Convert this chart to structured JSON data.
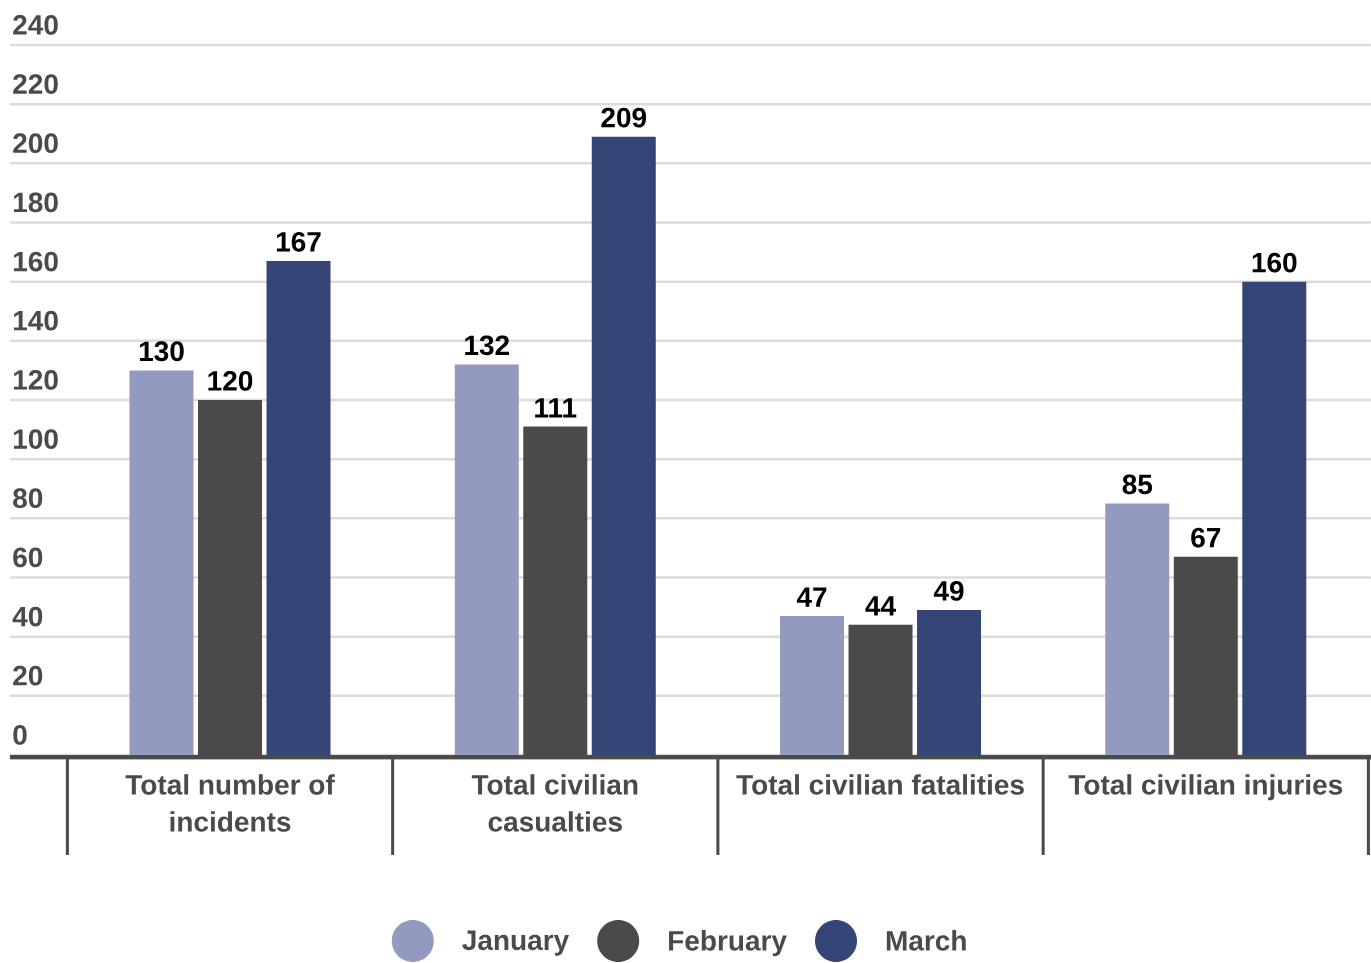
{
  "chart_data": {
    "type": "bar",
    "categories": [
      "Total number of incidents",
      "Total civilian casualties",
      "Total civilian fatalities",
      "Total civilian injuries"
    ],
    "series": [
      {
        "name": "January",
        "color": "#939abf",
        "values": [
          130,
          132,
          47,
          85
        ]
      },
      {
        "name": "February",
        "color": "#4a4a4a",
        "values": [
          120,
          111,
          44,
          67
        ]
      },
      {
        "name": "March",
        "color": "#354577",
        "values": [
          167,
          209,
          49,
          160
        ]
      }
    ],
    "ylim": [
      0,
      240
    ],
    "yticks": [
      0,
      20,
      40,
      60,
      80,
      100,
      120,
      140,
      160,
      180,
      200,
      220,
      240
    ],
    "grid": "y",
    "legend": "bottom",
    "data_labels": true
  }
}
